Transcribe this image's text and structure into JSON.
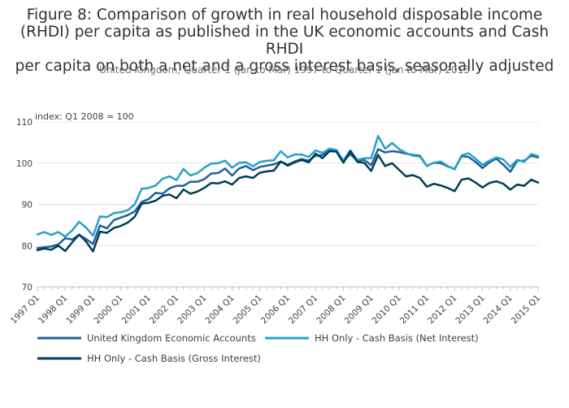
{
  "title_lines": [
    "Figure 8: Comparison of growth in real household disposable income",
    "(RHDI) per capita as published in the UK economic accounts and Cash RHDI",
    "per capita on both a net and a gross interest basis, seasonally adjusted"
  ],
  "subtitle": "United Kingdom, Quarter 1 (Jan to Mar) 1997 to Quarter 1 (Jan to Mar) 2015",
  "chart_data": {
    "type": "line",
    "ylabel": "index: Q1 2008 = 100",
    "ylim": [
      70,
      110
    ],
    "yticks": [
      70,
      80,
      90,
      100,
      110
    ],
    "grid": true,
    "legend_position": "bottom",
    "x_start": {
      "year": 1997,
      "quarter": 1
    },
    "x_end": {
      "year": 2015,
      "quarter": 1
    },
    "xtick_labels": [
      "1997 Q1",
      "1998 Q1",
      "1999 Q1",
      "2000 Q1",
      "2001 Q1",
      "2002 Q1",
      "2003 Q1",
      "2004 Q1",
      "2005 Q1",
      "2006 Q1",
      "2007 Q1",
      "2008 Q1",
      "2009 Q1",
      "2010 Q1",
      "2011 Q1",
      "2012 Q1",
      "2013 Q1",
      "2014 Q1",
      "2015 Q1"
    ],
    "series": [
      {
        "name": "United Kingdom Economic Accounts",
        "color": "#206095",
        "values": [
          79.4,
          79.6,
          79.8,
          80.3,
          81.8,
          81.5,
          82.6,
          81.6,
          80.4,
          84.9,
          84.2,
          86.2,
          86.8,
          87.4,
          88.3,
          90.6,
          91.3,
          92.8,
          92.6,
          93.9,
          94.5,
          94.5,
          95.5,
          95.5,
          96.1,
          97.5,
          97.6,
          98.7,
          97.0,
          98.7,
          99.3,
          98.3,
          99.1,
          99.4,
          99.7,
          100.4,
          99.6,
          100.4,
          101.0,
          100.6,
          101.8,
          102.0,
          103.0,
          103.1,
          100.5,
          102.2,
          100.6,
          100.8,
          99.5,
          103.4,
          102.6,
          102.9,
          102.7,
          102.3,
          102.0,
          101.8,
          99.3,
          100.1,
          100.0,
          99.2,
          98.6,
          101.7,
          101.5,
          100.3,
          98.8,
          100.2,
          101.1,
          99.6,
          97.9,
          100.6,
          100.6,
          101.8,
          101.4
        ]
      },
      {
        "name": "HH Only - Cash Basis (Net Interest)",
        "color": "#27a0cc",
        "values": [
          82.7,
          83.3,
          82.6,
          83.3,
          82.2,
          83.7,
          85.8,
          84.4,
          82.4,
          87.1,
          86.9,
          87.9,
          88.1,
          88.6,
          90.0,
          93.8,
          94.0,
          94.6,
          96.2,
          96.8,
          95.9,
          98.6,
          97.0,
          97.6,
          98.9,
          99.9,
          100.0,
          100.6,
          98.9,
          100.1,
          100.2,
          99.2,
          100.3,
          100.6,
          100.7,
          102.9,
          101.4,
          102.1,
          102.1,
          101.5,
          103.1,
          102.5,
          103.5,
          103.2,
          100.6,
          103.1,
          100.8,
          101.2,
          101.2,
          106.6,
          103.5,
          104.9,
          103.4,
          102.5,
          101.8,
          101.6,
          99.3,
          100.1,
          100.4,
          99.3,
          98.5,
          101.9,
          102.4,
          101.1,
          99.6,
          100.6,
          101.4,
          100.9,
          99.1,
          100.8,
          100.3,
          102.2,
          101.7
        ]
      },
      {
        "name": "HH Only - Cash Basis (Gross Interest)",
        "color": "#003c57",
        "values": [
          78.9,
          79.3,
          79.0,
          80.0,
          78.7,
          80.8,
          82.7,
          81.0,
          78.6,
          83.4,
          83.1,
          84.3,
          84.8,
          85.6,
          87.0,
          90.2,
          90.4,
          90.9,
          92.1,
          92.4,
          91.5,
          93.6,
          92.6,
          93.1,
          94.0,
          95.2,
          95.1,
          95.6,
          94.8,
          96.4,
          96.8,
          96.4,
          97.7,
          98.0,
          98.2,
          100.4,
          99.4,
          100.2,
          100.8,
          100.2,
          102.3,
          101.2,
          102.9,
          102.8,
          100.1,
          102.9,
          100.3,
          100.1,
          98.1,
          102.0,
          99.3,
          100.0,
          98.4,
          96.8,
          97.1,
          96.4,
          94.3,
          95.0,
          94.6,
          94.0,
          93.2,
          96.0,
          96.3,
          95.3,
          94.1,
          95.2,
          95.6,
          95.0,
          93.6,
          94.8,
          94.5,
          96.0,
          95.3
        ]
      }
    ]
  }
}
